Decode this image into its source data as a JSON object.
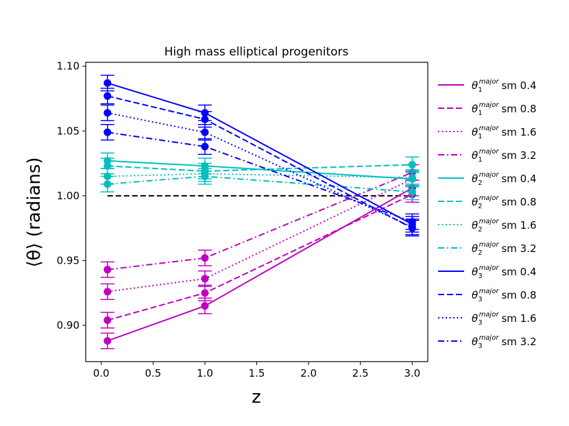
{
  "chart_data": {
    "type": "line",
    "title": "High mass elliptical progenitors",
    "xlabel": "z",
    "ylabel": "⟨θ⟩ (radians)",
    "xlim": [
      -0.15,
      3.15
    ],
    "ylim": [
      0.872,
      1.103
    ],
    "xticks": [
      0.0,
      0.5,
      1.0,
      1.5,
      2.0,
      2.5,
      3.0
    ],
    "xtick_labels": [
      "0.0",
      "0.5",
      "1.0",
      "1.5",
      "2.0",
      "2.5",
      "3.0"
    ],
    "yticks": [
      0.9,
      0.95,
      1.0,
      1.05,
      1.1
    ],
    "ytick_labels": [
      "0.90",
      "0.95",
      "1.00",
      "1.05",
      "1.10"
    ],
    "reference_line": {
      "y": 1.0,
      "color": "#000000",
      "style": "dashed"
    },
    "x": [
      0.06,
      1.0,
      3.0
    ],
    "series": [
      {
        "name": "θ1 major sm 0.4",
        "base": "θ",
        "sub": "1",
        "sup": "major",
        "suffix": "sm 0.4",
        "color": "#bf00bf",
        "style": "solid",
        "values": [
          0.888,
          0.915,
          1.006
        ],
        "errors": [
          0.006,
          0.006,
          0.006
        ]
      },
      {
        "name": "θ1 major sm 0.8",
        "base": "θ",
        "sub": "1",
        "sup": "major",
        "suffix": "sm 0.8",
        "color": "#bf00bf",
        "style": "dashed",
        "values": [
          0.904,
          0.925,
          1.001
        ],
        "errors": [
          0.006,
          0.006,
          0.006
        ]
      },
      {
        "name": "θ1 major sm 1.6",
        "base": "θ",
        "sub": "1",
        "sup": "major",
        "suffix": "sm 1.6",
        "color": "#bf00bf",
        "style": "dotted",
        "values": [
          0.926,
          0.936,
          1.013
        ],
        "errors": [
          0.006,
          0.006,
          0.006
        ]
      },
      {
        "name": "θ1 major sm 3.2",
        "base": "θ",
        "sub": "1",
        "sup": "major",
        "suffix": "sm 3.2",
        "color": "#bf00bf",
        "style": "dashdot",
        "values": [
          0.943,
          0.952,
          1.018
        ],
        "errors": [
          0.006,
          0.006,
          0.006
        ]
      },
      {
        "name": "θ2 major sm 0.4",
        "base": "θ",
        "sub": "2",
        "sup": "major",
        "suffix": "sm 0.4",
        "color": "#00bfbf",
        "style": "solid",
        "values": [
          1.027,
          1.023,
          1.013
        ],
        "errors": [
          0.006,
          0.006,
          0.006
        ]
      },
      {
        "name": "θ2 major sm 0.8",
        "base": "θ",
        "sub": "2",
        "sup": "major",
        "suffix": "sm 0.8",
        "color": "#00bfbf",
        "style": "dashed",
        "values": [
          1.023,
          1.019,
          1.024
        ],
        "errors": [
          0.006,
          0.006,
          0.006
        ]
      },
      {
        "name": "θ2 major sm 1.6",
        "base": "θ",
        "sub": "2",
        "sup": "major",
        "suffix": "sm 1.6",
        "color": "#00bfbf",
        "style": "dotted",
        "values": [
          1.015,
          1.017,
          1.014
        ],
        "errors": [
          0.006,
          0.006,
          0.006
        ]
      },
      {
        "name": "θ2 major sm 3.2",
        "base": "θ",
        "sub": "2",
        "sup": "major",
        "suffix": "sm 3.2",
        "color": "#00bfbf",
        "style": "dashdot",
        "values": [
          1.009,
          1.015,
          1.003
        ],
        "errors": [
          0.006,
          0.006,
          0.006
        ]
      },
      {
        "name": "θ3 major sm 0.4",
        "base": "θ",
        "sub": "3",
        "sup": "major",
        "suffix": "sm 0.4",
        "color": "#0000ff",
        "style": "solid",
        "values": [
          1.087,
          1.064,
          0.978
        ],
        "errors": [
          0.006,
          0.006,
          0.006
        ]
      },
      {
        "name": "θ3 major sm 0.8",
        "base": "θ",
        "sub": "3",
        "sup": "major",
        "suffix": "sm 0.8",
        "color": "#0000ff",
        "style": "dashed",
        "values": [
          1.077,
          1.059,
          0.975
        ],
        "errors": [
          0.006,
          0.006,
          0.006
        ]
      },
      {
        "name": "θ3 major sm 1.6",
        "base": "θ",
        "sub": "3",
        "sup": "major",
        "suffix": "sm 1.6",
        "color": "#0000ff",
        "style": "dotted",
        "values": [
          1.064,
          1.049,
          0.976
        ],
        "errors": [
          0.006,
          0.006,
          0.006
        ]
      },
      {
        "name": "θ3 major sm 3.2",
        "base": "θ",
        "sub": "3",
        "sup": "major",
        "suffix": "sm 3.2",
        "color": "#0000ff",
        "style": "dashdot",
        "values": [
          1.049,
          1.038,
          0.98
        ],
        "errors": [
          0.006,
          0.006,
          0.006
        ]
      }
    ],
    "legend": "outside-right"
  }
}
